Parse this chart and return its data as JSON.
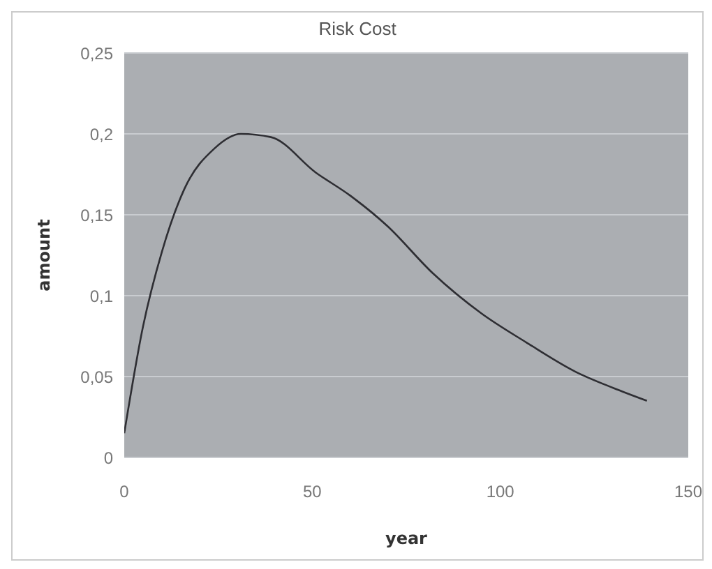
{
  "chart_data": {
    "type": "line",
    "title": "Risk Cost",
    "xlabel": "year",
    "ylabel": "amount",
    "x": [
      0,
      5,
      10,
      16,
      24,
      31,
      39,
      51,
      60,
      70,
      82,
      95,
      107,
      120,
      130,
      139
    ],
    "series": [
      {
        "color": "#2e2e33",
        "values": [
          0.015,
          0.081,
          0.127,
          0.166,
          0.191,
          0.2,
          0.198,
          0.176,
          0.162,
          0.143,
          0.114,
          0.089,
          0.071,
          0.053,
          0.043,
          0.035
        ]
      }
    ],
    "xlim": [
      0,
      150
    ],
    "xticks": [
      0,
      50,
      100,
      150
    ],
    "ylim": [
      0,
      0.25
    ],
    "yticks": [
      0,
      {
        "value": 0.05,
        "label": "0,05"
      },
      {
        "value": 0.1,
        "label": "0,1"
      },
      {
        "value": 0.15,
        "label": "0,15"
      },
      {
        "value": 0.2,
        "label": "0,2"
      },
      {
        "value": 0.25,
        "label": "0,25"
      }
    ],
    "grid": "y",
    "marker": "none",
    "line_style": "solid"
  }
}
